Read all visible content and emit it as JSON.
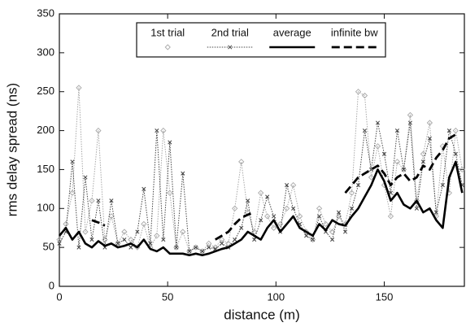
{
  "chart_data": {
    "type": "line",
    "xlabel": "distance (m)",
    "ylabel": "rms delay spread (ns)",
    "xlim": [
      0,
      187
    ],
    "ylim": [
      0,
      350
    ],
    "xticks": [
      0,
      50,
      100,
      150
    ],
    "yticks": [
      0,
      50,
      100,
      150,
      200,
      250,
      300,
      350
    ],
    "legend": "top",
    "x": [
      0,
      3,
      6,
      9,
      12,
      15,
      18,
      21,
      24,
      27,
      30,
      33,
      36,
      39,
      42,
      45,
      48,
      51,
      54,
      57,
      60,
      63,
      66,
      69,
      72,
      75,
      78,
      81,
      84,
      87,
      90,
      93,
      96,
      99,
      102,
      105,
      108,
      111,
      114,
      117,
      120,
      123,
      126,
      129,
      132,
      135,
      138,
      141,
      144,
      147,
      150,
      153,
      156,
      159,
      162,
      165,
      168,
      171,
      174,
      177,
      180,
      183,
      186
    ],
    "series": [
      {
        "name": "1st trial",
        "color": "#a8a8a8",
        "style": "dotted",
        "marker": "diamond",
        "values": [
          60,
          80,
          120,
          255,
          70,
          110,
          200,
          60,
          90,
          55,
          70,
          60,
          50,
          80,
          50,
          65,
          200,
          120,
          50,
          70,
          45,
          50,
          45,
          55,
          50,
          60,
          55,
          100,
          160,
          95,
          70,
          120,
          90,
          75,
          80,
          100,
          130,
          90,
          70,
          60,
          100,
          80,
          70,
          90,
          80,
          120,
          250,
          245,
          140,
          180,
          130,
          90,
          160,
          150,
          220,
          110,
          170,
          210,
          90,
          180,
          120,
          200,
          150
        ]
      },
      {
        "name": "2nd trial",
        "color": "#444444",
        "style": "dotted",
        "marker": "x",
        "values": [
          55,
          70,
          160,
          50,
          140,
          60,
          110,
          50,
          110,
          55,
          60,
          50,
          70,
          125,
          55,
          200,
          60,
          185,
          50,
          145,
          45,
          50,
          45,
          50,
          48,
          55,
          50,
          60,
          75,
          110,
          60,
          85,
          115,
          90,
          70,
          130,
          100,
          80,
          65,
          60,
          90,
          70,
          60,
          95,
          70,
          100,
          130,
          200,
          150,
          210,
          170,
          120,
          200,
          150,
          210,
          100,
          160,
          190,
          95,
          130,
          200,
          170,
          130
        ]
      },
      {
        "name": "average",
        "color": "#000000",
        "style": "solid",
        "values": [
          65,
          75,
          60,
          70,
          55,
          50,
          58,
          52,
          55,
          50,
          52,
          55,
          50,
          60,
          48,
          45,
          50,
          42,
          42,
          42,
          40,
          42,
          40,
          42,
          45,
          48,
          50,
          55,
          60,
          70,
          65,
          60,
          75,
          85,
          70,
          80,
          90,
          75,
          70,
          65,
          80,
          72,
          85,
          80,
          78,
          90,
          100,
          115,
          130,
          150,
          135,
          110,
          120,
          105,
          100,
          110,
          95,
          100,
          85,
          75,
          140,
          160,
          120
        ]
      },
      {
        "name": "infinite bw",
        "color": "#000000",
        "style": "dashed",
        "values": [
          null,
          null,
          null,
          null,
          null,
          85,
          82,
          78,
          null,
          null,
          null,
          null,
          null,
          null,
          null,
          null,
          null,
          null,
          null,
          null,
          null,
          null,
          null,
          null,
          60,
          65,
          70,
          80,
          88,
          92,
          95,
          null,
          null,
          null,
          null,
          null,
          null,
          null,
          null,
          null,
          null,
          null,
          null,
          null,
          120,
          130,
          140,
          145,
          150,
          155,
          145,
          130,
          140,
          145,
          135,
          140,
          155,
          150,
          165,
          175,
          190,
          195,
          null
        ]
      }
    ]
  }
}
